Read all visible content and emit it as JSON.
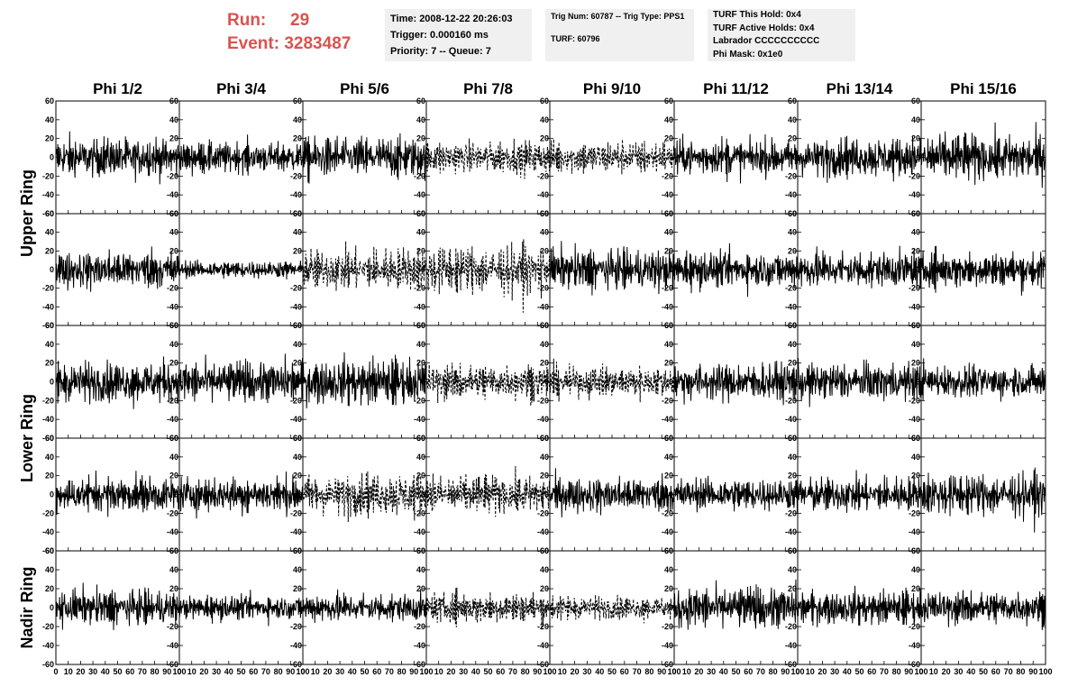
{
  "header": {
    "run_label": "Run:",
    "run_value": "29",
    "event_label": "Event:",
    "event_value": "3283487",
    "time_line": "Time: 2008-12-22 20:26:03",
    "trigger_line": "Trigger: 0.000160 ms",
    "priority_line": "Priority: 7 -- Queue: 7",
    "trig_line": "Trig Num: 60787 -- Trig Type: PPS1",
    "turf_line": "TURF: 60796",
    "hold_line": "TURF This Hold: 0x4",
    "active_line": "TURF Active Holds: 0x4",
    "labrador_line": "Labrador CCCCCCCCCC",
    "phimask_line": "Phi Mask: 0x1e0"
  },
  "colors": {
    "header_accent": "#d9534f",
    "info_background": "#f0f0f0",
    "trace": "#000000"
  },
  "chart_data": {
    "type": "line",
    "title": "",
    "columns": [
      "Phi 1/2",
      "Phi 3/4",
      "Phi 5/6",
      "Phi 7/8",
      "Phi 9/10",
      "Phi 11/12",
      "Phi 13/14",
      "Phi 15/16"
    ],
    "rows": [
      "Upper Ring",
      "Lower Ring",
      "Nadir Ring"
    ],
    "panel_rows": 5,
    "xlim": [
      0,
      100
    ],
    "ylim": [
      -60,
      60
    ],
    "x_ticks": [
      0,
      10,
      20,
      30,
      40,
      50,
      60,
      70,
      80,
      90,
      100
    ],
    "y_ticks": [
      -60,
      -40,
      -20,
      0,
      20,
      40,
      60
    ],
    "grid": false,
    "legend": "none",
    "dashed_panels": [
      [
        0,
        3
      ],
      [
        0,
        4
      ],
      [
        1,
        2
      ],
      [
        1,
        3
      ],
      [
        2,
        3
      ],
      [
        2,
        4
      ],
      [
        3,
        2
      ],
      [
        3,
        3
      ],
      [
        4,
        3
      ],
      [
        4,
        4
      ]
    ],
    "trace_amplitude": [
      [
        13,
        10,
        14,
        11,
        11,
        12,
        13,
        16
      ],
      [
        13,
        6,
        14,
        16,
        14,
        12,
        13,
        12
      ],
      [
        14,
        14,
        15,
        12,
        10,
        13,
        13,
        11
      ],
      [
        12,
        12,
        14,
        13,
        12,
        11,
        12,
        14
      ],
      [
        12,
        8,
        10,
        10,
        8,
        14,
        11,
        11
      ]
    ],
    "samples_per_trace": 260
  }
}
